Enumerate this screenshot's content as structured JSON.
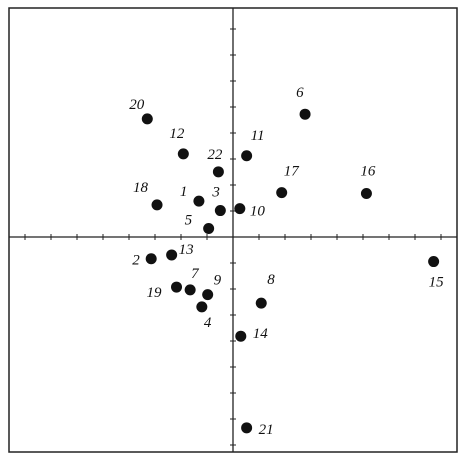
{
  "chart_data": {
    "type": "scatter",
    "title": "",
    "xlabel": "",
    "ylabel": "",
    "xlim": [
      -2.3,
      2.3
    ],
    "ylim": [
      -2.35,
      2.35
    ],
    "grid": false,
    "legend": "none",
    "colors": {
      "point": "#111111",
      "axis": "#222222",
      "frame": "#222222"
    },
    "points": [
      {
        "label": "1",
        "x": -0.35,
        "y": 0.38
      },
      {
        "label": "2",
        "x": -0.84,
        "y": -0.23
      },
      {
        "label": "3",
        "x": -0.13,
        "y": 0.28
      },
      {
        "label": "4",
        "x": -0.32,
        "y": -0.74
      },
      {
        "label": "5",
        "x": -0.25,
        "y": 0.09
      },
      {
        "label": "6",
        "x": 0.74,
        "y": 1.3
      },
      {
        "label": "7",
        "x": -0.44,
        "y": -0.56
      },
      {
        "label": "8",
        "x": 0.29,
        "y": -0.7
      },
      {
        "label": "9",
        "x": -0.26,
        "y": -0.61
      },
      {
        "label": "10",
        "x": 0.07,
        "y": 0.3
      },
      {
        "label": "11",
        "x": 0.14,
        "y": 0.86
      },
      {
        "label": "12",
        "x": -0.51,
        "y": 0.88
      },
      {
        "label": "13",
        "x": -0.63,
        "y": -0.19
      },
      {
        "label": "14",
        "x": 0.08,
        "y": -1.05
      },
      {
        "label": "15",
        "x": 2.06,
        "y": -0.26
      },
      {
        "label": "16",
        "x": 1.37,
        "y": 0.46
      },
      {
        "label": "17",
        "x": 0.5,
        "y": 0.47
      },
      {
        "label": "18",
        "x": -0.78,
        "y": 0.34
      },
      {
        "label": "19",
        "x": -0.58,
        "y": -0.53
      },
      {
        "label": "20",
        "x": -0.88,
        "y": 1.25
      },
      {
        "label": "21",
        "x": 0.14,
        "y": -2.02
      },
      {
        "label": "22",
        "x": -0.15,
        "y": 0.69
      }
    ]
  }
}
